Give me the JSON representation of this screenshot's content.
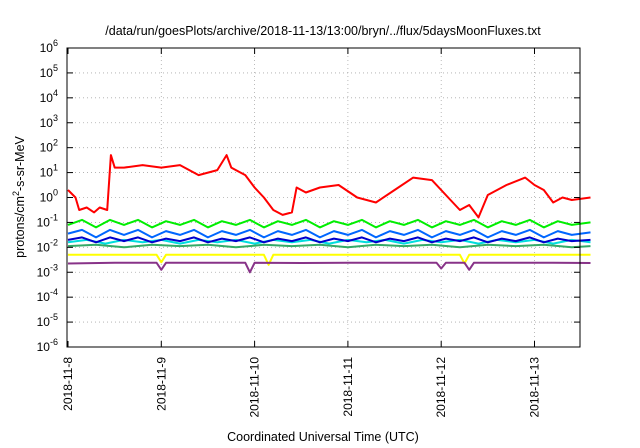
{
  "chart_data": {
    "type": "line",
    "title": "/data/run/goesPlots/archive/2018-11-13/13:00/bryn/../flux/5daysMoonFluxes.txt",
    "xlabel": "Coordinated Universal Time (UTC)",
    "ylabel": {
      "prefix": "protons/cm",
      "sup": "2",
      "suffix": "-s-sr-MeV"
    },
    "y_scale": "log",
    "ylim_exponents": [
      -6,
      6
    ],
    "y_tick_base": "10",
    "y_tick_exponents": [
      "-6",
      "-5",
      "-4",
      "-3",
      "-2",
      "-1",
      "0",
      "1",
      "2",
      "3",
      "4",
      "5",
      "6"
    ],
    "xlim_days": [
      "2018-11-08",
      "2018-11-13 ~14:00"
    ],
    "x_tick_labels": [
      "2018-11-8",
      "2018-11-9",
      "2018-11-10",
      "2018-11-11",
      "2018-11-12",
      "2018-11-13"
    ],
    "grid": true,
    "legend": "none",
    "series": [
      {
        "color": "#ff0000",
        "x_days": [
          0,
          0.08,
          0.12,
          0.2,
          0.28,
          0.34,
          0.42,
          0.46,
          0.5,
          0.6,
          0.8,
          1.0,
          1.2,
          1.4,
          1.6,
          1.7,
          1.75,
          1.8,
          1.9,
          2.0,
          2.1,
          2.2,
          2.3,
          2.4,
          2.45,
          2.55,
          2.7,
          2.9,
          3.1,
          3.2,
          3.3,
          3.5,
          3.7,
          3.9,
          4.1,
          4.2,
          4.3,
          4.4,
          4.5,
          4.7,
          4.9,
          5.0,
          5.1,
          5.2,
          5.3,
          5.4,
          5.6
        ],
        "log10_values": [
          0.3,
          0.0,
          -0.5,
          -0.4,
          -0.6,
          -0.4,
          -0.5,
          1.7,
          1.2,
          1.2,
          1.3,
          1.2,
          1.3,
          0.9,
          1.1,
          1.7,
          1.2,
          1.1,
          0.9,
          0.4,
          0.0,
          -0.5,
          -0.7,
          -0.6,
          0.4,
          0.2,
          0.4,
          0.5,
          0.0,
          -0.1,
          -0.2,
          0.3,
          0.8,
          0.7,
          -0.1,
          -0.5,
          -0.3,
          -0.8,
          0.1,
          0.5,
          0.8,
          0.5,
          0.3,
          -0.2,
          0.0,
          -0.1,
          0.0
        ]
      },
      {
        "color": "#00ee00",
        "x_days": [
          0,
          0.15,
          0.3,
          0.45,
          0.6,
          0.75,
          0.9,
          1.05,
          1.2,
          1.35,
          1.5,
          1.65,
          1.8,
          1.95,
          2.1,
          2.25,
          2.4,
          2.55,
          2.7,
          2.85,
          3.0,
          3.15,
          3.3,
          3.45,
          3.6,
          3.75,
          3.9,
          4.05,
          4.2,
          4.35,
          4.5,
          4.65,
          4.8,
          4.95,
          5.1,
          5.25,
          5.4,
          5.6
        ],
        "log10_values": [
          -1.1,
          -0.9,
          -1.2,
          -0.9,
          -1.1,
          -0.9,
          -1.2,
          -0.95,
          -1.1,
          -0.9,
          -1.2,
          -0.95,
          -1.1,
          -0.9,
          -1.2,
          -0.95,
          -1.1,
          -0.9,
          -1.2,
          -0.95,
          -1.1,
          -0.9,
          -1.2,
          -0.95,
          -1.1,
          -0.9,
          -1.2,
          -0.95,
          -1.1,
          -0.9,
          -1.2,
          -0.95,
          -1.1,
          -0.9,
          -1.2,
          -0.95,
          -1.1,
          -1.0
        ]
      },
      {
        "color": "#0066ff",
        "x_days": [
          0,
          0.15,
          0.3,
          0.45,
          0.6,
          0.75,
          0.9,
          1.05,
          1.2,
          1.35,
          1.5,
          1.65,
          1.8,
          1.95,
          2.1,
          2.25,
          2.4,
          2.55,
          2.7,
          2.85,
          3.0,
          3.15,
          3.3,
          3.45,
          3.6,
          3.75,
          3.9,
          4.05,
          4.2,
          4.35,
          4.5,
          4.65,
          4.8,
          4.95,
          5.1,
          5.25,
          5.4,
          5.6
        ],
        "log10_values": [
          -1.45,
          -1.3,
          -1.6,
          -1.3,
          -1.5,
          -1.3,
          -1.6,
          -1.35,
          -1.5,
          -1.3,
          -1.6,
          -1.35,
          -1.5,
          -1.3,
          -1.6,
          -1.35,
          -1.5,
          -1.3,
          -1.6,
          -1.35,
          -1.5,
          -1.3,
          -1.6,
          -1.35,
          -1.5,
          -1.3,
          -1.6,
          -1.35,
          -1.5,
          -1.3,
          -1.6,
          -1.35,
          -1.5,
          -1.3,
          -1.6,
          -1.35,
          -1.5,
          -1.4
        ]
      },
      {
        "color": "#00dddd",
        "x_days": [
          0,
          0.2,
          0.4,
          0.6,
          0.8,
          1.0,
          1.2,
          1.4,
          1.6,
          1.8,
          2.0,
          2.2,
          2.4,
          2.6,
          2.8,
          3.0,
          3.2,
          3.4,
          3.6,
          3.8,
          4.0,
          4.2,
          4.4,
          4.6,
          4.8,
          5.0,
          5.2,
          5.4,
          5.6
        ],
        "log10_values": [
          -1.8,
          -1.7,
          -1.85,
          -1.7,
          -1.8,
          -1.7,
          -1.85,
          -1.7,
          -1.8,
          -1.7,
          -1.85,
          -1.7,
          -1.8,
          -1.7,
          -1.85,
          -1.7,
          -1.8,
          -1.7,
          -1.85,
          -1.7,
          -1.8,
          -1.7,
          -1.85,
          -1.7,
          -1.8,
          -1.7,
          -1.85,
          -1.7,
          -1.8
        ]
      },
      {
        "color": "#0000cc",
        "x_days": [
          0,
          0.15,
          0.3,
          0.45,
          0.6,
          0.75,
          0.9,
          1.05,
          1.2,
          1.35,
          1.5,
          1.65,
          1.8,
          1.95,
          2.1,
          2.25,
          2.4,
          2.55,
          2.7,
          2.85,
          3.0,
          3.15,
          3.3,
          3.45,
          3.6,
          3.75,
          3.9,
          4.05,
          4.2,
          4.35,
          4.5,
          4.65,
          4.8,
          4.95,
          5.1,
          5.25,
          5.4,
          5.6
        ],
        "log10_values": [
          -1.7,
          -1.6,
          -1.8,
          -1.6,
          -1.75,
          -1.6,
          -1.8,
          -1.65,
          -1.75,
          -1.6,
          -1.8,
          -1.65,
          -1.75,
          -1.6,
          -1.8,
          -1.65,
          -1.75,
          -1.6,
          -1.8,
          -1.65,
          -1.75,
          -1.6,
          -1.8,
          -1.65,
          -1.75,
          -1.6,
          -1.8,
          -1.65,
          -1.75,
          -1.6,
          -1.8,
          -1.65,
          -1.75,
          -1.6,
          -1.8,
          -1.65,
          -1.75,
          -1.7
        ]
      },
      {
        "color": "#33aa66",
        "x_days": [
          0,
          0.3,
          0.6,
          0.9,
          1.2,
          1.5,
          1.8,
          2.1,
          2.4,
          2.7,
          3.0,
          3.3,
          3.6,
          3.9,
          4.2,
          4.5,
          4.8,
          5.1,
          5.4,
          5.6
        ],
        "log10_values": [
          -1.95,
          -1.9,
          -2.0,
          -1.9,
          -1.95,
          -1.9,
          -2.0,
          -1.9,
          -1.95,
          -1.9,
          -2.0,
          -1.9,
          -1.95,
          -1.9,
          -2.0,
          -1.9,
          -1.95,
          -1.9,
          -2.0,
          -1.95
        ]
      },
      {
        "color": "#ffff00",
        "x_days": [
          0,
          0.5,
          0.95,
          1.0,
          1.05,
          1.5,
          2.0,
          2.1,
          2.15,
          2.2,
          2.7,
          3.2,
          3.7,
          4.2,
          4.25,
          4.3,
          4.7,
          5.1,
          5.6
        ],
        "log10_values": [
          -2.3,
          -2.3,
          -2.3,
          -2.6,
          -2.3,
          -2.3,
          -2.3,
          -2.3,
          -2.7,
          -2.3,
          -2.3,
          -2.3,
          -2.3,
          -2.3,
          -2.65,
          -2.3,
          -2.3,
          -2.3,
          -2.3
        ]
      },
      {
        "color": "#883388",
        "x_days": [
          0,
          0.5,
          0.95,
          1.0,
          1.05,
          1.5,
          1.9,
          1.95,
          2.0,
          2.5,
          3.0,
          3.5,
          3.95,
          4.0,
          4.05,
          4.25,
          4.3,
          4.35,
          4.8,
          5.2,
          5.6
        ],
        "log10_values": [
          -2.65,
          -2.62,
          -2.62,
          -2.9,
          -2.62,
          -2.62,
          -2.62,
          -3.0,
          -2.62,
          -2.63,
          -2.62,
          -2.62,
          -2.62,
          -2.85,
          -2.62,
          -2.62,
          -2.9,
          -2.62,
          -2.62,
          -2.62,
          -2.63
        ]
      }
    ]
  }
}
